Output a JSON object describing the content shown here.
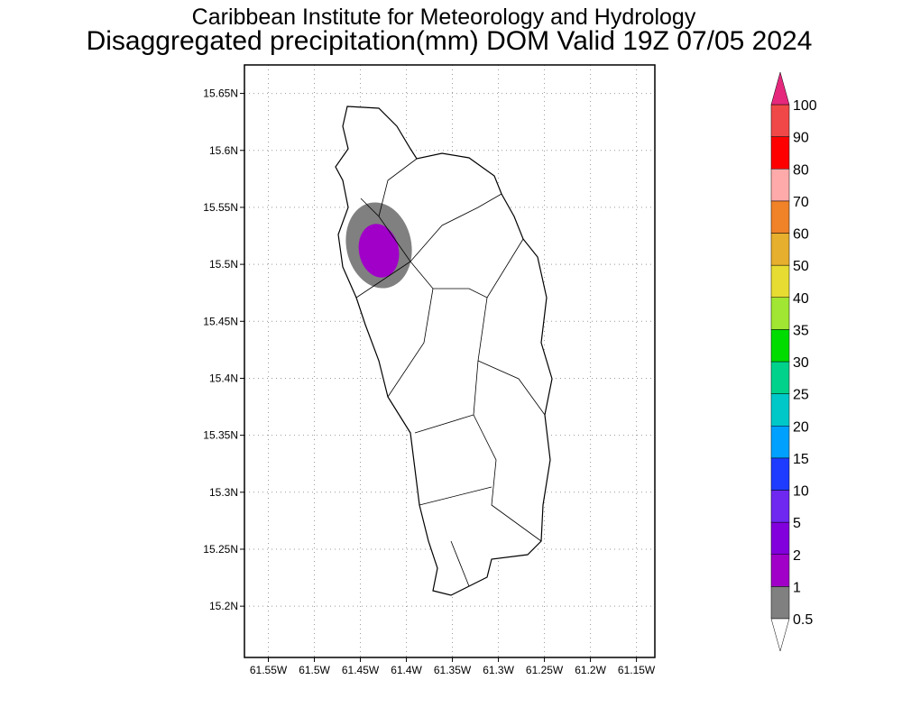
{
  "map": {
    "title": "Caribbean Institute for Meteorology and Hydrology",
    "subtitle": "Disaggregated precipitation(mm) DOM Valid 19Z 07/05 2024",
    "xlim": [
      -61.576,
      -61.13
    ],
    "ylim": [
      15.155,
      15.675
    ],
    "xticks": [
      {
        "value": -61.55,
        "label": "61.55W"
      },
      {
        "value": -61.5,
        "label": "61.5W"
      },
      {
        "value": -61.45,
        "label": "61.45W"
      },
      {
        "value": -61.4,
        "label": "61.4W"
      },
      {
        "value": -61.35,
        "label": "61.35W"
      },
      {
        "value": -61.3,
        "label": "61.3W"
      },
      {
        "value": -61.25,
        "label": "61.25W"
      },
      {
        "value": -61.2,
        "label": "61.2W"
      },
      {
        "value": -61.15,
        "label": "61.15W"
      }
    ],
    "yticks": [
      {
        "value": 15.2,
        "label": "15.2N"
      },
      {
        "value": 15.25,
        "label": "15.25N"
      },
      {
        "value": 15.3,
        "label": "15.3N"
      },
      {
        "value": 15.35,
        "label": "15.35N"
      },
      {
        "value": 15.4,
        "label": "15.4N"
      },
      {
        "value": 15.45,
        "label": "15.45N"
      },
      {
        "value": 15.5,
        "label": "15.5N"
      },
      {
        "value": 15.55,
        "label": "15.55N"
      },
      {
        "value": 15.6,
        "label": "15.6N"
      },
      {
        "value": 15.65,
        "label": "15.65N"
      }
    ],
    "grid": true,
    "colorbar": {
      "levels": [
        0.5,
        1,
        2,
        5,
        10,
        15,
        20,
        25,
        30,
        35,
        40,
        50,
        60,
        70,
        80,
        90,
        100
      ],
      "colors": [
        "#808080",
        "#a000c8",
        "#8200dc",
        "#6e28f0",
        "#1e3cff",
        "#00a0ff",
        "#00c8c8",
        "#00d28c",
        "#00dc00",
        "#a0e632",
        "#e6dc32",
        "#e6af2d",
        "#f08228",
        "#ffaaaa",
        "#ff0000",
        "#f04848"
      ],
      "over_color": "#e6287d",
      "under_color": "#ffffff"
    }
  }
}
